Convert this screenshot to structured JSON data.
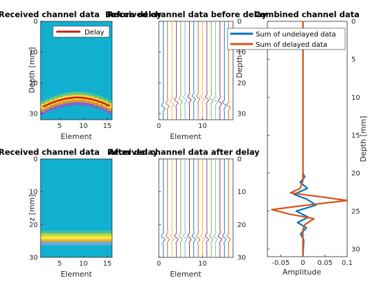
{
  "figure": {
    "panel_a_title": "Received channel data",
    "panel_b_title": "Before delay",
    "panel_c_title": "Received channel data before delay",
    "panel_d_title": "Received channel data",
    "panel_e_title": "After delay",
    "panel_f_title": "Received channel data after delay",
    "panel_g_title": "Combined channel data"
  },
  "chart_data": [
    {
      "type": "heatmap",
      "xlabel": "Element",
      "ylabel": "Depth [mm]",
      "xticks": [
        "5",
        "10",
        "15"
      ],
      "yticks": [
        "0",
        "10",
        "20",
        "30"
      ],
      "xlim": [
        1,
        16
      ],
      "ylim": [
        0,
        32
      ],
      "legend": [
        "Delay"
      ],
      "legend_position": "top-right",
      "elements": [
        1,
        2,
        3,
        4,
        5,
        6,
        7,
        8,
        9,
        10,
        11,
        12,
        13,
        14,
        15,
        16
      ],
      "delay_curve_depth_mm": [
        27.8,
        27.1,
        26.5,
        26.0,
        25.6,
        25.2,
        25.0,
        24.8,
        24.8,
        24.9,
        25.1,
        25.4,
        25.8,
        26.3,
        26.9,
        27.6
      ],
      "colors": {
        "background": "#12b0d0",
        "delay": "#d01818"
      }
    },
    {
      "type": "line",
      "xlabel": "Element",
      "ylabel": "Depth [mm]",
      "xticks": [
        "0",
        "10"
      ],
      "yticks": [
        "0",
        "10",
        "20",
        "30"
      ],
      "xlim": [
        0,
        17
      ],
      "ylim": [
        0,
        32
      ],
      "series_count": 16,
      "pulse_depth_mm": [
        27.8,
        27.1,
        26.5,
        26.0,
        25.6,
        25.2,
        25.0,
        24.8,
        24.8,
        24.9,
        25.1,
        25.4,
        25.8,
        26.3,
        26.9,
        27.6
      ]
    },
    {
      "type": "heatmap",
      "xlabel": "Element",
      "ylabel": "z [mm]",
      "xticks": [
        "5",
        "10",
        "15"
      ],
      "yticks": [
        "0",
        "10",
        "20",
        "30"
      ],
      "xlim": [
        1,
        16
      ],
      "ylim": [
        0,
        30
      ],
      "band_depth_mm": 24,
      "colors": {
        "background": "#12b0d0"
      }
    },
    {
      "type": "line",
      "xlabel": "Element",
      "ylabel": "Depth [mm]",
      "xticks": [
        "0",
        "10"
      ],
      "yticks": [
        "0",
        "10",
        "20",
        "30"
      ],
      "xlim": [
        0,
        17
      ],
      "ylim": [
        0,
        30
      ],
      "series_count": 16,
      "pulse_depth_mm": 24
    },
    {
      "type": "line",
      "xlabel": "Amplitude",
      "ylabel": "Depth [mm]",
      "xticks": [
        "-0.05",
        "0",
        "0.05",
        "0.1"
      ],
      "yticks": [
        "0",
        "5",
        "10",
        "15",
        "20",
        "25",
        "30"
      ],
      "xlim": [
        -0.08,
        0.1
      ],
      "ylim": [
        0,
        31
      ],
      "legend_position": "top",
      "series": [
        {
          "name": "Sum of undelayed data",
          "color": "#0072bd",
          "depth": [
            0,
            20,
            20.5,
            21.2,
            22.0,
            22.8,
            23.4,
            24.2,
            25.0,
            25.8,
            26.5,
            27.2,
            28.0,
            28.8,
            31
          ],
          "amplitude": [
            0,
            0,
            0.004,
            -0.006,
            0.01,
            -0.02,
            0.008,
            0.03,
            -0.015,
            0.012,
            -0.012,
            0.008,
            -0.005,
            0.002,
            0
          ]
        },
        {
          "name": "Sum of delayed data",
          "color": "#d95319",
          "depth": [
            0,
            21.0,
            22.0,
            22.6,
            23.2,
            23.6,
            24.2,
            24.8,
            25.4,
            26.0,
            26.8,
            27.4,
            31
          ],
          "amplitude": [
            0,
            0,
            -0.006,
            -0.028,
            0.05,
            0.1,
            0.01,
            -0.07,
            -0.03,
            0.025,
            0.004,
            0,
            0
          ]
        }
      ]
    }
  ]
}
